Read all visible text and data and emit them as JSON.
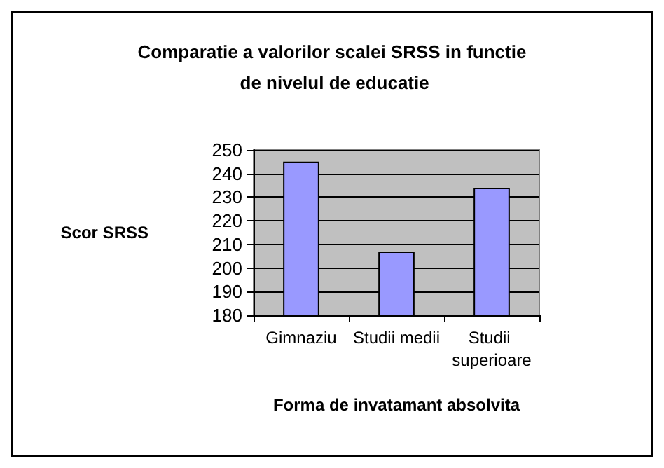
{
  "chart_data": {
    "type": "bar",
    "title": "Comparatie a valorilor scalei SRSS in functie de nivelul de educatie",
    "xlabel": "Forma de invatamant absolvita",
    "ylabel": "Scor SRSS",
    "categories": [
      "Gimnaziu",
      "Studii medii",
      "Studii superioare"
    ],
    "values": [
      245,
      207,
      234
    ],
    "color": "#9999ff",
    "ylim": [
      180,
      250
    ],
    "yticks": [
      180,
      190,
      200,
      210,
      220,
      230,
      240,
      250
    ],
    "grid": "y"
  }
}
